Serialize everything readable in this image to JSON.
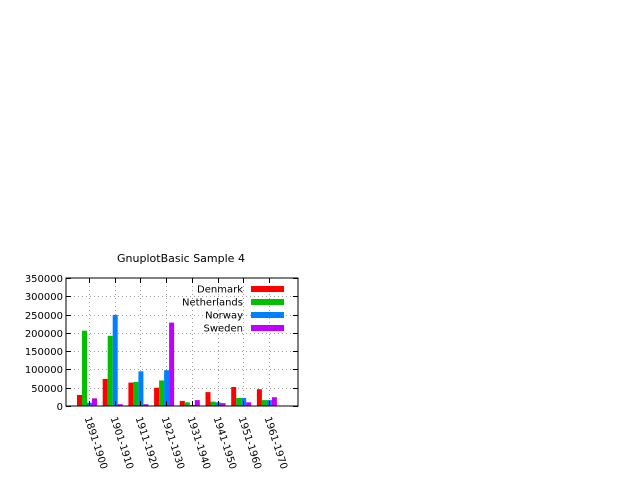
{
  "chart_data": {
    "type": "bar",
    "title": "GnuplotBasic Sample 4",
    "xlabel": "",
    "ylabel": "",
    "ylim": [
      0,
      350000
    ],
    "yticks": [
      0,
      50000,
      100000,
      150000,
      200000,
      250000,
      300000,
      350000
    ],
    "ytick_labels": [
      "0",
      "50000",
      "100000",
      "150000",
      "200000",
      "250000",
      "300000",
      "350000"
    ],
    "grid": true,
    "legend_position": "top-right",
    "categories": [
      "1891-1900",
      "1901-1910",
      "1911-1920",
      "1921-1930",
      "1931-1940",
      "1941-1950",
      "1951-1960",
      "1961-1970"
    ],
    "series": [
      {
        "name": "Denmark",
        "color": "#ff0000",
        "values": [
          30000,
          74000,
          64000,
          50000,
          14000,
          38000,
          52000,
          46000
        ]
      },
      {
        "name": "Netherlands",
        "color": "#00c000",
        "values": [
          206000,
          192000,
          66000,
          70000,
          10000,
          12000,
          22000,
          16000
        ]
      },
      {
        "name": "Norway",
        "color": "#0080ff",
        "values": [
          9000,
          249000,
          95000,
          98000,
          3000,
          10000,
          22000,
          16000
        ]
      },
      {
        "name": "Sweden",
        "color": "#c000ff",
        "values": [
          21000,
          5000,
          5000,
          228000,
          16000,
          8000,
          10000,
          24000
        ]
      }
    ]
  }
}
